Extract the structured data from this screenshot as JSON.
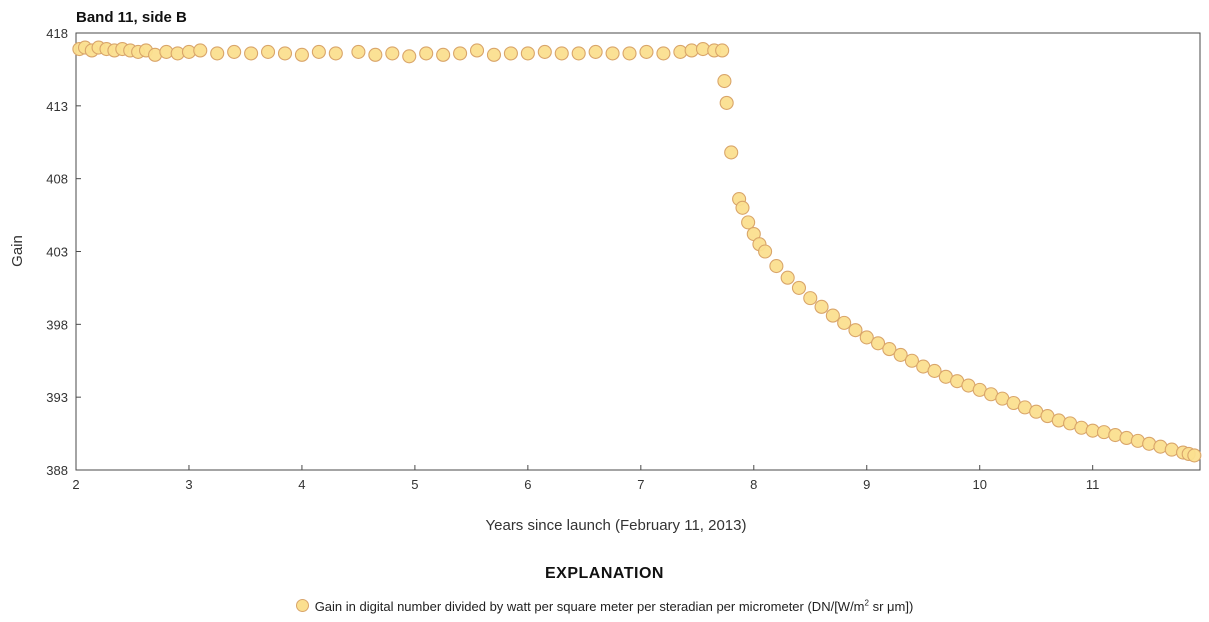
{
  "chart_data": {
    "type": "scatter",
    "title": "Band 11, side B",
    "xlabel": "Years since launch (February 11, 2013)",
    "ylabel": "Gain",
    "xlim": [
      2,
      11.95
    ],
    "ylim": [
      388,
      418
    ],
    "xticks": [
      2,
      3,
      4,
      5,
      6,
      7,
      8,
      9,
      10,
      11
    ],
    "yticks": [
      388,
      393,
      398,
      403,
      408,
      413,
      418
    ],
    "grid": false,
    "series": [
      {
        "name": "Gain in digital number divided by watt per square meter per steradian per micrometer (DN/[W/m² sr μm])",
        "color": "#fbdf8f",
        "edge_color": "#d9a56a",
        "points": [
          [
            2.03,
            416.9
          ],
          [
            2.08,
            417.0
          ],
          [
            2.14,
            416.8
          ],
          [
            2.2,
            417.0
          ],
          [
            2.27,
            416.9
          ],
          [
            2.34,
            416.8
          ],
          [
            2.41,
            416.9
          ],
          [
            2.48,
            416.8
          ],
          [
            2.55,
            416.7
          ],
          [
            2.62,
            416.8
          ],
          [
            2.7,
            416.5
          ],
          [
            2.8,
            416.7
          ],
          [
            2.9,
            416.6
          ],
          [
            3.0,
            416.7
          ],
          [
            3.1,
            416.8
          ],
          [
            3.25,
            416.6
          ],
          [
            3.4,
            416.7
          ],
          [
            3.55,
            416.6
          ],
          [
            3.7,
            416.7
          ],
          [
            3.85,
            416.6
          ],
          [
            4.0,
            416.5
          ],
          [
            4.15,
            416.7
          ],
          [
            4.3,
            416.6
          ],
          [
            4.5,
            416.7
          ],
          [
            4.65,
            416.5
          ],
          [
            4.8,
            416.6
          ],
          [
            4.95,
            416.4
          ],
          [
            5.1,
            416.6
          ],
          [
            5.25,
            416.5
          ],
          [
            5.4,
            416.6
          ],
          [
            5.55,
            416.8
          ],
          [
            5.7,
            416.5
          ],
          [
            5.85,
            416.6
          ],
          [
            6.0,
            416.6
          ],
          [
            6.15,
            416.7
          ],
          [
            6.3,
            416.6
          ],
          [
            6.45,
            416.6
          ],
          [
            6.6,
            416.7
          ],
          [
            6.75,
            416.6
          ],
          [
            6.9,
            416.6
          ],
          [
            7.05,
            416.7
          ],
          [
            7.2,
            416.6
          ],
          [
            7.35,
            416.7
          ],
          [
            7.45,
            416.8
          ],
          [
            7.55,
            416.9
          ],
          [
            7.65,
            416.8
          ],
          [
            7.72,
            416.8
          ],
          [
            7.74,
            414.7
          ],
          [
            7.76,
            413.2
          ],
          [
            7.8,
            409.8
          ],
          [
            7.87,
            406.6
          ],
          [
            7.9,
            406.0
          ],
          [
            7.95,
            405.0
          ],
          [
            8.0,
            404.2
          ],
          [
            8.05,
            403.5
          ],
          [
            8.1,
            403.0
          ],
          [
            8.2,
            402.0
          ],
          [
            8.3,
            401.2
          ],
          [
            8.4,
            400.5
          ],
          [
            8.5,
            399.8
          ],
          [
            8.6,
            399.2
          ],
          [
            8.7,
            398.6
          ],
          [
            8.8,
            398.1
          ],
          [
            8.9,
            397.6
          ],
          [
            9.0,
            397.1
          ],
          [
            9.1,
            396.7
          ],
          [
            9.2,
            396.3
          ],
          [
            9.3,
            395.9
          ],
          [
            9.4,
            395.5
          ],
          [
            9.5,
            395.1
          ],
          [
            9.6,
            394.8
          ],
          [
            9.7,
            394.4
          ],
          [
            9.8,
            394.1
          ],
          [
            9.9,
            393.8
          ],
          [
            10.0,
            393.5
          ],
          [
            10.1,
            393.2
          ],
          [
            10.2,
            392.9
          ],
          [
            10.3,
            392.6
          ],
          [
            10.4,
            392.3
          ],
          [
            10.5,
            392.0
          ],
          [
            10.6,
            391.7
          ],
          [
            10.7,
            391.4
          ],
          [
            10.8,
            391.2
          ],
          [
            10.9,
            390.9
          ],
          [
            11.0,
            390.7
          ],
          [
            11.1,
            390.6
          ],
          [
            11.2,
            390.4
          ],
          [
            11.3,
            390.2
          ],
          [
            11.4,
            390.0
          ],
          [
            11.5,
            389.8
          ],
          [
            11.6,
            389.6
          ],
          [
            11.7,
            389.4
          ],
          [
            11.8,
            389.2
          ],
          [
            11.85,
            389.1
          ],
          [
            11.9,
            389.0
          ]
        ]
      }
    ]
  },
  "explanation": {
    "heading": "EXPLANATION",
    "legend_text_before": "Gain in digital number divided by watt per square meter per steradian per micrometer (DN/[W/m",
    "legend_superscript": "2",
    "legend_text_after": " sr μm])"
  }
}
